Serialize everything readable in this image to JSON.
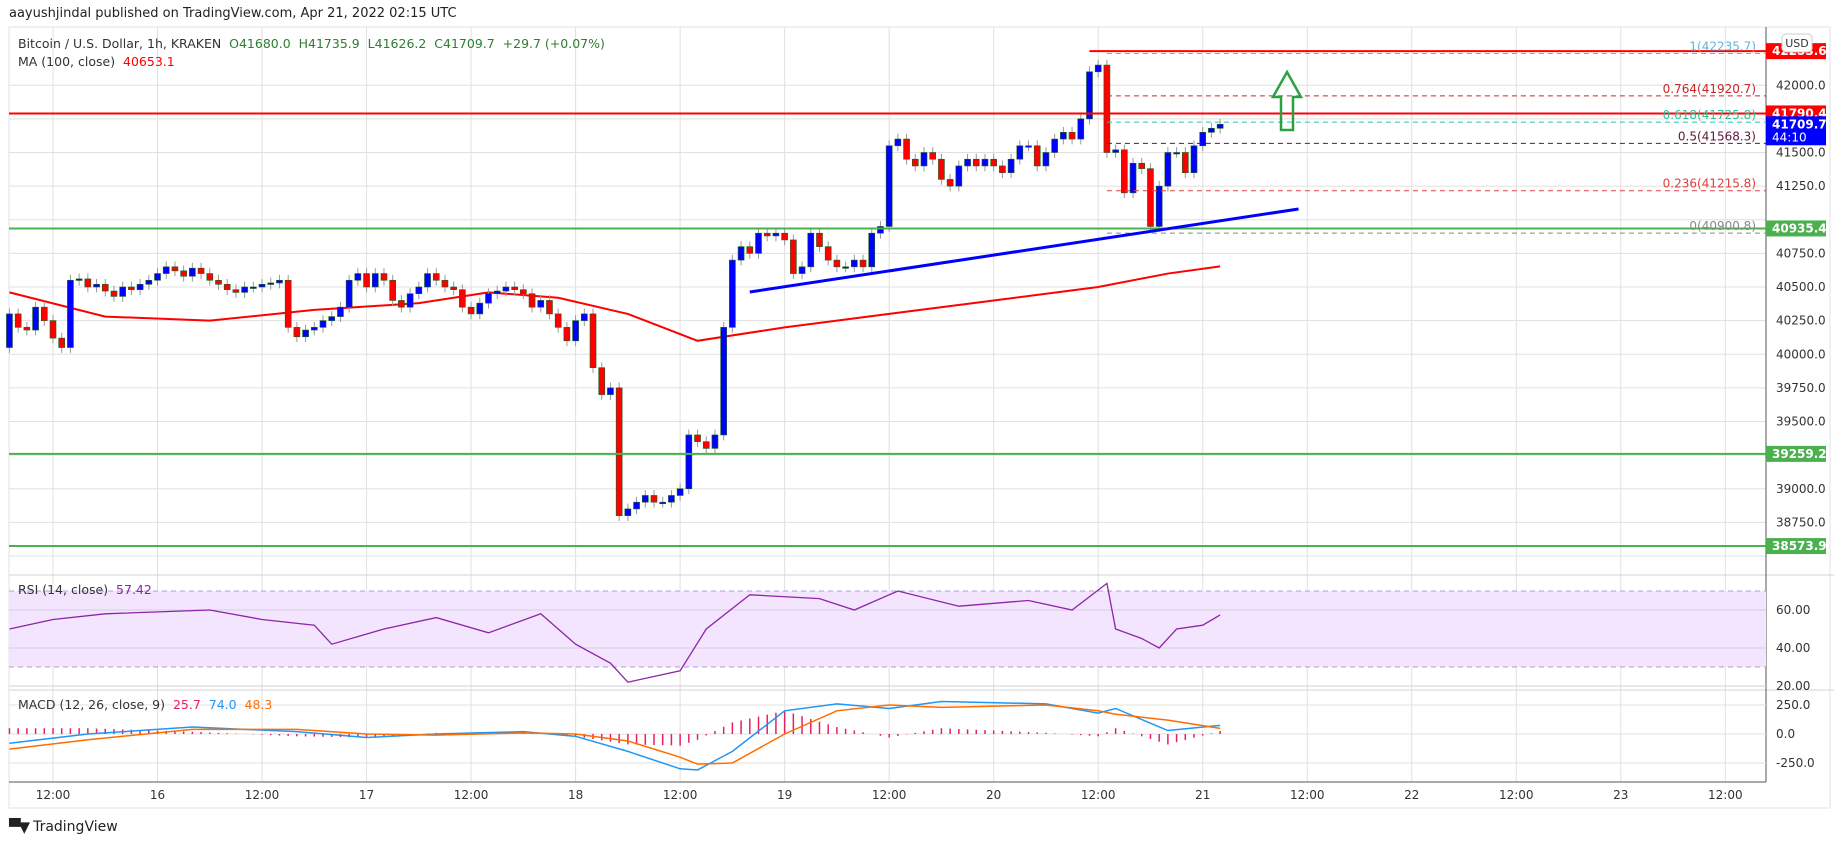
{
  "header": {
    "publisher": "aayushjindal published on TradingView.com, Apr 21, 2022 02:15 UTC"
  },
  "legend": {
    "symbol": "Bitcoin / U.S. Dollar, 1h, KRAKEN",
    "open": "O41680.0",
    "high": "H41735.9",
    "low": "L41626.2",
    "close": "C41709.7",
    "change": "+29.7 (+0.07%)",
    "ma_label": "MA (100, close)",
    "ma_value": "40653.1",
    "rsi_label": "RSI (14, close)",
    "rsi_value": "57.42",
    "macd_label": "MACD (12, 26, close, 9)",
    "macd_hist": "25.7",
    "macd_value": "74.0",
    "macd_signal": "48.3"
  },
  "branding": {
    "logo_text": "TradingView"
  },
  "price_axis": {
    "currency": "USD",
    "countdown": "44:10"
  },
  "chart_data": [
    {
      "type": "candlestick",
      "title": "Bitcoin / U.S. Dollar, 1h, KRAKEN",
      "x_unit": "hour",
      "first_candle": "Apr 15 07:00",
      "first_open": 40050,
      "closes": [
        40300,
        40200,
        40180,
        40350,
        40250,
        40120,
        40050,
        40550,
        40560,
        40500,
        40520,
        40470,
        40430,
        40500,
        40480,
        40520,
        40550,
        40600,
        40650,
        40620,
        40580,
        40640,
        40600,
        40550,
        40520,
        40480,
        40460,
        40500,
        40500,
        40520,
        40530,
        40550,
        40200,
        40130,
        40180,
        40200,
        40250,
        40280,
        40350,
        40550,
        40600,
        40500,
        40600,
        40550,
        40400,
        40350,
        40450,
        40500,
        40600,
        40550,
        40500,
        40480,
        40350,
        40300,
        40380,
        40450,
        40470,
        40500,
        40480,
        40450,
        40350,
        40400,
        40300,
        40200,
        40100,
        40250,
        40300,
        39900,
        39700,
        39750,
        38800,
        38850,
        38900,
        38950,
        38900,
        38900,
        38950,
        39000,
        39400,
        39350,
        39300,
        39400,
        40200,
        40700,
        40800,
        40750,
        40900,
        40880,
        40900,
        40850,
        40600,
        40650,
        40900,
        40800,
        40700,
        40650,
        40650,
        40700,
        40650,
        40900,
        40950,
        41550,
        41600,
        41450,
        41400,
        41500,
        41450,
        41300,
        41250,
        41400,
        41450,
        41400,
        41450,
        41400,
        41350,
        41450,
        41550,
        41550,
        41400,
        41500,
        41600,
        41650,
        41600,
        41750,
        42100,
        42150,
        41500,
        41520,
        41200,
        41420,
        41380,
        40950,
        41250,
        41500,
        41500,
        41350,
        41550,
        41650,
        41680,
        41709.7
      ],
      "ylim": [
        38400,
        42420
      ],
      "y_ticks": [
        42000,
        41750,
        41500,
        41250,
        41000,
        40750,
        40500,
        40250,
        40000,
        39750,
        39500,
        39250,
        39000,
        38750,
        38500
      ],
      "x_ticks": [
        "12:00",
        "16",
        "12:00",
        "17",
        "12:00",
        "18",
        "12:00",
        "19",
        "12:00",
        "20",
        "12:00",
        "21",
        "12:00",
        "22",
        "12:00",
        "23",
        "12:00"
      ],
      "up_color": "#0000ff",
      "down_color": "#ff0000",
      "ma100": {
        "name": "MA (100, close)",
        "color": "#ff0000",
        "points": [
          [
            "Apr 15 07:00",
            40460
          ],
          [
            "Apr 15 18:00",
            40280
          ],
          [
            "Apr 16 06:00",
            40250
          ],
          [
            "Apr 16 18:00",
            40330
          ],
          [
            "Apr 17 06:00",
            40380
          ],
          [
            "Apr 17 14:00",
            40460
          ],
          [
            "Apr 17 22:00",
            40420
          ],
          [
            "Apr 18 06:00",
            40300
          ],
          [
            "Apr 18 14:00",
            40100
          ],
          [
            "Apr 19 00:00",
            40200
          ],
          [
            "Apr 19 12:00",
            40300
          ],
          [
            "Apr 20 00:00",
            40400
          ],
          [
            "Apr 20 12:00",
            40500
          ],
          [
            "Apr 20 20:00",
            40600
          ],
          [
            "Apr 21 02:00",
            40653.1
          ]
        ]
      },
      "horizontal_levels": [
        {
          "value": 42253.6,
          "label": "42253.6",
          "color": "#ff0000",
          "from": "Apr 20 11:00"
        },
        {
          "value": 41790.4,
          "label": "41790.4",
          "color": "#ff0000"
        },
        {
          "value": 40935.4,
          "label": "40935.4",
          "color": "#4caf50"
        },
        {
          "value": 39259.2,
          "label": "39259.2",
          "color": "#4caf50"
        },
        {
          "value": 38573.9,
          "label": "38573.9",
          "color": "#4caf50"
        }
      ],
      "current_price": {
        "value": 41709.7,
        "label": "41709.7",
        "color": "#0000ff"
      },
      "fibonacci": {
        "from": "Apr 20 13:00",
        "levels": [
          {
            "ratio": "1",
            "value": 42235.7,
            "label": "1(42235.7)",
            "color": "#5fb4e0"
          },
          {
            "ratio": "0.764",
            "value": 41920.7,
            "label": "0.764(41920.7)",
            "color": "#c62828"
          },
          {
            "ratio": "0.618",
            "value": 41725.8,
            "label": "0.618(41725.8)",
            "color": "#26c6a0"
          },
          {
            "ratio": "0.5",
            "value": 41568.3,
            "label": "0.5(41568.3)",
            "color": "#5d1a3a"
          },
          {
            "ratio": "0.236",
            "value": 41215.8,
            "label": "0.236(41215.8)",
            "color": "#e04040"
          },
          {
            "ratio": "0",
            "value": 40900.8,
            "label": "0(40900.8)",
            "color": "#888888"
          }
        ]
      },
      "trendline": {
        "color": "#0000ff",
        "points": [
          [
            "Apr 18 20:00",
            40463
          ],
          [
            "Apr 21 11:00",
            41080
          ]
        ]
      },
      "annotation": {
        "type": "up-arrow",
        "color": "#2ea043"
      }
    },
    {
      "type": "line",
      "title": "RSI (14, close)",
      "ylim": [
        15,
        80
      ],
      "y_ticks": [
        60,
        40,
        20
      ],
      "band": [
        30,
        70
      ],
      "color": "#8e24aa",
      "points": [
        [
          "Apr 15 07:00",
          50
        ],
        [
          "Apr 15 12:00",
          55
        ],
        [
          "Apr 15 18:00",
          58
        ],
        [
          "Apr 16 06:00",
          60
        ],
        [
          "Apr 16 12:00",
          55
        ],
        [
          "Apr 16 18:00",
          52
        ],
        [
          "Apr 16 20:00",
          42
        ],
        [
          "Apr 17 02:00",
          50
        ],
        [
          "Apr 17 08:00",
          56
        ],
        [
          "Apr 17 14:00",
          48
        ],
        [
          "Apr 17 20:00",
          58
        ],
        [
          "Apr 18 00:00",
          42
        ],
        [
          "Apr 18 04:00",
          32
        ],
        [
          "Apr 18 06:00",
          22
        ],
        [
          "Apr 18 12:00",
          28
        ],
        [
          "Apr 18 15:00",
          50
        ],
        [
          "Apr 18 20:00",
          68
        ],
        [
          "Apr 19 04:00",
          66
        ],
        [
          "Apr 19 08:00",
          60
        ],
        [
          "Apr 19 13:00",
          70
        ],
        [
          "Apr 19 20:00",
          62
        ],
        [
          "Apr 20 04:00",
          65
        ],
        [
          "Apr 20 09:00",
          60
        ],
        [
          "Apr 20 13:00",
          74
        ],
        [
          "Apr 20 14:00",
          50
        ],
        [
          "Apr 20 17:00",
          45
        ],
        [
          "Apr 20 19:00",
          40
        ],
        [
          "Apr 20 21:00",
          50
        ],
        [
          "Apr 21 00:00",
          52
        ],
        [
          "Apr 21 02:00",
          57.42
        ]
      ]
    },
    {
      "type": "line+histogram",
      "title": "MACD (12, 26, close, 9)",
      "ylim": [
        -420,
        380
      ],
      "y_ticks": [
        250,
        0,
        -250
      ],
      "macd": {
        "color": "#2196f3",
        "points": [
          [
            "Apr 15 07:00",
            -80
          ],
          [
            "Apr 15 16:00",
            0
          ],
          [
            "Apr 16 04:00",
            60
          ],
          [
            "Apr 16 16:00",
            20
          ],
          [
            "Apr 17 00:00",
            -30
          ],
          [
            "Apr 17 08:00",
            0
          ],
          [
            "Apr 17 18:00",
            20
          ],
          [
            "Apr 18 00:00",
            -20
          ],
          [
            "Apr 18 06:00",
            -150
          ],
          [
            "Apr 18 12:00",
            -300
          ],
          [
            "Apr 18 14:00",
            -310
          ],
          [
            "Apr 18 18:00",
            -150
          ],
          [
            "Apr 19 00:00",
            200
          ],
          [
            "Apr 19 06:00",
            260
          ],
          [
            "Apr 19 12:00",
            220
          ],
          [
            "Apr 19 18:00",
            280
          ],
          [
            "Apr 20 06:00",
            260
          ],
          [
            "Apr 20 12:00",
            180
          ],
          [
            "Apr 20 14:00",
            220
          ],
          [
            "Apr 20 20:00",
            30
          ],
          [
            "Apr 21 02:00",
            74
          ]
        ]
      },
      "signal": {
        "color": "#ff6d00",
        "points": [
          [
            "Apr 15 07:00",
            -130
          ],
          [
            "Apr 15 16:00",
            -50
          ],
          [
            "Apr 16 04:00",
            40
          ],
          [
            "Apr 16 16:00",
            40
          ],
          [
            "Apr 17 00:00",
            0
          ],
          [
            "Apr 17 08:00",
            -10
          ],
          [
            "Apr 17 18:00",
            10
          ],
          [
            "Apr 18 00:00",
            0
          ],
          [
            "Apr 18 06:00",
            -60
          ],
          [
            "Apr 18 12:00",
            -200
          ],
          [
            "Apr 18 14:00",
            -260
          ],
          [
            "Apr 18 18:00",
            -250
          ],
          [
            "Apr 19 00:00",
            0
          ],
          [
            "Apr 19 06:00",
            200
          ],
          [
            "Apr 19 12:00",
            250
          ],
          [
            "Apr 19 18:00",
            230
          ],
          [
            "Apr 20 06:00",
            250
          ],
          [
            "Apr 20 12:00",
            200
          ],
          [
            "Apr 20 14:00",
            170
          ],
          [
            "Apr 20 20:00",
            120
          ],
          [
            "Apr 21 02:00",
            48.3
          ]
        ]
      },
      "histogram_color": "#e91e63"
    }
  ]
}
